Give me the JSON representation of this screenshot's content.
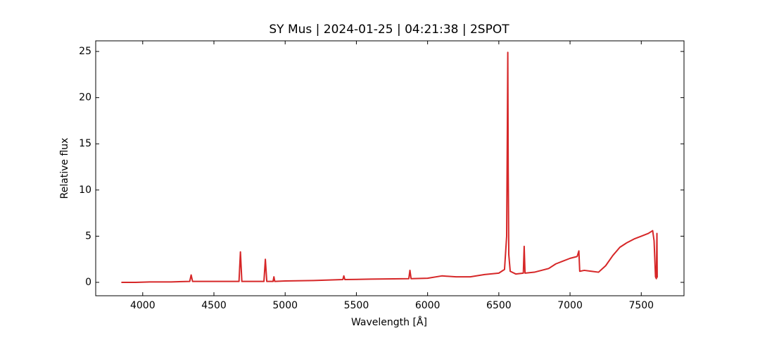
{
  "chart_data": {
    "type": "line",
    "title": "SY Mus | 2024-01-25 | 04:21:38 | 2SPOT",
    "x_label": "Wavelength [Å]",
    "y_label": "Relative flux",
    "x": [
      3850,
      3950,
      4050,
      4200,
      4330,
      4340,
      4350,
      4500,
      4676,
      4686,
      4696,
      4851,
      4861,
      4871,
      4915,
      4921,
      4927,
      5000,
      5200,
      5405,
      5412,
      5419,
      5600,
      5868,
      5876,
      5884,
      6000,
      6100,
      6200,
      6300,
      6400,
      6500,
      6540,
      6555,
      6560,
      6563,
      6566,
      6570,
      6580,
      6620,
      6672,
      6678,
      6684,
      6750,
      6800,
      6850,
      6900,
      6950,
      7000,
      7050,
      7062,
      7068,
      7100,
      7150,
      7200,
      7250,
      7300,
      7350,
      7400,
      7450,
      7500,
      7550,
      7580,
      7590,
      7600,
      7606,
      7610,
      7612
    ],
    "series": [
      {
        "name": "SY Mus",
        "color": "#d62728",
        "values": [
          0.0,
          0.0,
          0.05,
          0.05,
          0.1,
          0.8,
          0.1,
          0.1,
          0.1,
          3.3,
          0.1,
          0.1,
          2.5,
          0.1,
          0.1,
          0.6,
          0.1,
          0.15,
          0.2,
          0.3,
          0.7,
          0.3,
          0.35,
          0.4,
          1.3,
          0.4,
          0.45,
          0.7,
          0.6,
          0.6,
          0.85,
          1.0,
          1.4,
          5,
          17,
          24.9,
          12,
          3,
          1.2,
          0.9,
          1.0,
          3.9,
          1.0,
          1.1,
          1.3,
          1.5,
          2.0,
          2.3,
          2.6,
          2.8,
          3.4,
          1.2,
          1.3,
          1.2,
          1.1,
          1.8,
          2.9,
          3.8,
          4.3,
          4.7,
          5.0,
          5.3,
          5.6,
          4.5,
          0.6,
          0.4,
          5.3,
          0.5
        ]
      }
    ],
    "xlim": [
      3670,
      7800
    ],
    "ylim": [
      -1.45,
      26.15
    ],
    "xticks": [
      4000,
      4500,
      5000,
      5500,
      6000,
      6500,
      7000,
      7500
    ],
    "yticks": [
      0,
      5,
      10,
      15,
      20,
      25
    ]
  }
}
